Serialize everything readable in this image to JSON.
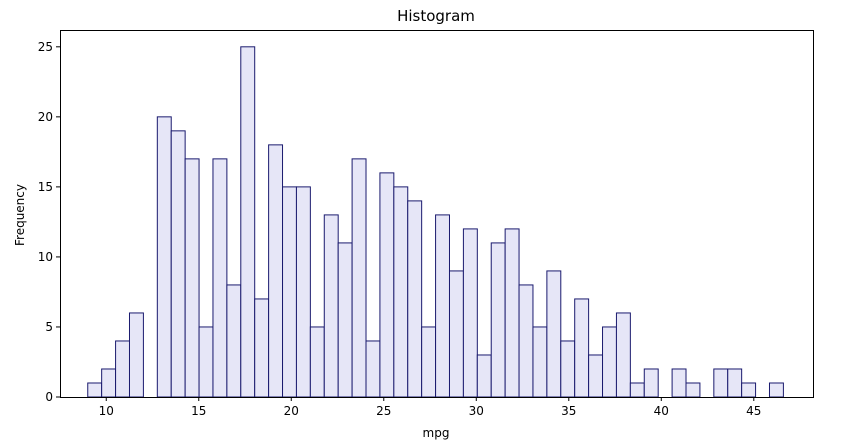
{
  "chart_data": {
    "type": "bar",
    "title": "Histogram",
    "xlabel": "mpg",
    "ylabel": "Frequency",
    "xlim": [
      7.5,
      48.2
    ],
    "ylim": [
      0,
      26.2
    ],
    "x_ticks": [
      10,
      15,
      20,
      25,
      30,
      35,
      40,
      45
    ],
    "y_ticks": [
      0,
      5,
      10,
      15,
      20,
      25
    ],
    "grid": false,
    "legend": "none",
    "bin_start": 9.0,
    "bin_width": 0.752,
    "counts": [
      1,
      2,
      4,
      6,
      0,
      20,
      19,
      17,
      5,
      17,
      8,
      25,
      7,
      18,
      15,
      15,
      5,
      13,
      11,
      17,
      4,
      16,
      15,
      14,
      5,
      13,
      9,
      12,
      3,
      11,
      12,
      8,
      5,
      9,
      4,
      7,
      3,
      5,
      6,
      1,
      2,
      0,
      2,
      1,
      0,
      2,
      2,
      1,
      0,
      1
    ],
    "bar_fill": "#e6e6f7",
    "bar_edge": "#1a1a6e"
  }
}
